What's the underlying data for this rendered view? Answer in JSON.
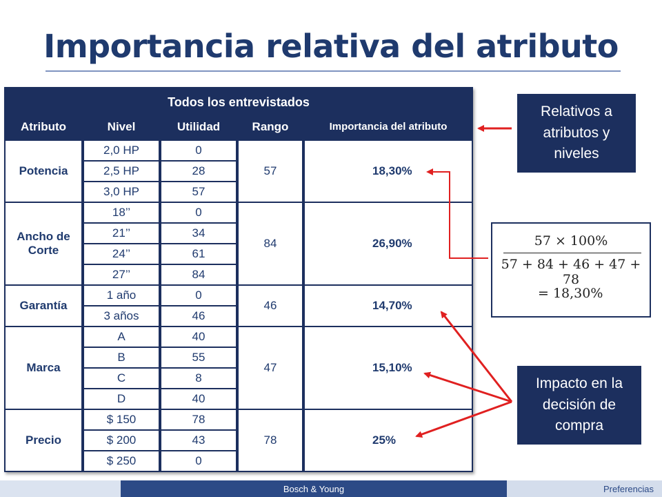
{
  "title": "Importancia relativa del atributo",
  "table": {
    "caption": "Todos los entrevistados",
    "headers": [
      "Atributo",
      "Nivel",
      "Utilidad",
      "Rango",
      "Importancia del atributo"
    ],
    "groups": [
      {
        "attr": "Potencia",
        "rango": "57",
        "imp": "18,30%",
        "levels": [
          {
            "nivel": "2,0 HP",
            "util": "0"
          },
          {
            "nivel": "2,5 HP",
            "util": "28"
          },
          {
            "nivel": "3,0 HP",
            "util": "57"
          }
        ]
      },
      {
        "attr": "Ancho de Corte",
        "rango": "84",
        "imp": "26,90%",
        "levels": [
          {
            "nivel": "18’’",
            "util": "0"
          },
          {
            "nivel": "21’’",
            "util": "34"
          },
          {
            "nivel": "24’’",
            "util": "61"
          },
          {
            "nivel": "27’’",
            "util": "84"
          }
        ]
      },
      {
        "attr": "Garantía",
        "rango": "46",
        "imp": "14,70%",
        "levels": [
          {
            "nivel": "1 año",
            "util": "0"
          },
          {
            "nivel": "3 años",
            "util": "46"
          }
        ]
      },
      {
        "attr": "Marca",
        "rango": "47",
        "imp": "15,10%",
        "levels": [
          {
            "nivel": "A",
            "util": "40"
          },
          {
            "nivel": "B",
            "util": "55"
          },
          {
            "nivel": "C",
            "util": "8"
          },
          {
            "nivel": "D",
            "util": "40"
          }
        ]
      },
      {
        "attr": "Precio",
        "rango": "78",
        "imp": "25%",
        "levels": [
          {
            "nivel": "$ 150",
            "util": "78"
          },
          {
            "nivel": "$ 200",
            "util": "43"
          },
          {
            "nivel": "$ 250",
            "util": "0"
          }
        ]
      }
    ]
  },
  "callouts": {
    "relativos": "Relativos a atributos y niveles",
    "impacto": "Impacto en la decisión de compra"
  },
  "formula": {
    "numerator": "57 × 100%",
    "denominator": "57 + 84 + 46 + 47 + 78",
    "result": "= 18,30%"
  },
  "footer": {
    "center": "Bosch & Young",
    "right": "Preferencias"
  },
  "colors": {
    "navy": "#1c2f5e",
    "title": "#1f3a6e",
    "arrow": "#e02020"
  }
}
